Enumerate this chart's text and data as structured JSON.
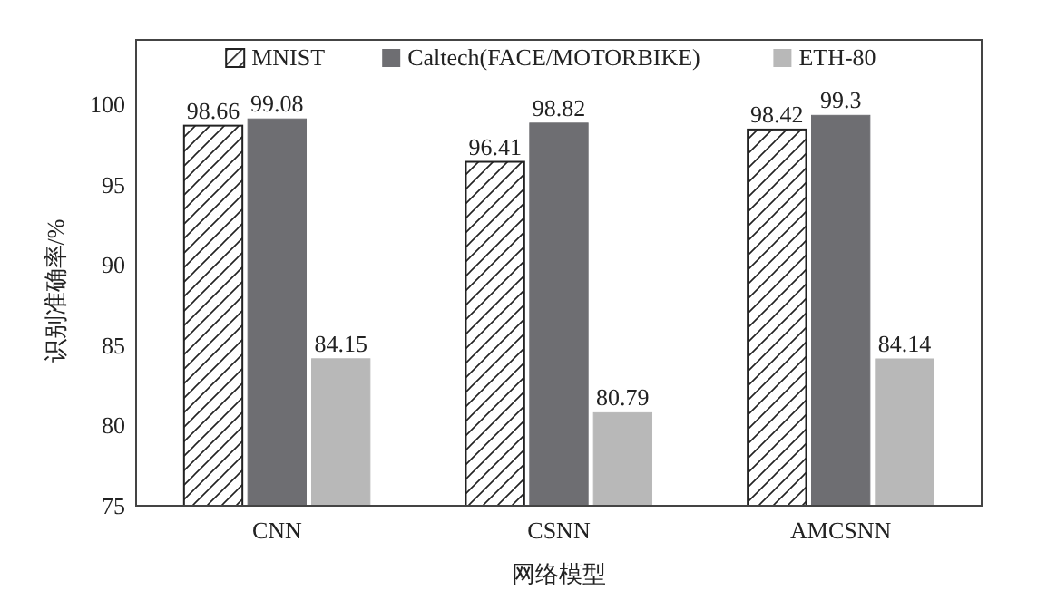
{
  "chart_data": {
    "type": "bar",
    "xlabel": "网络模型",
    "ylabel": "识别准确率/%",
    "categories": [
      "CNN",
      "CSNN",
      "AMCSNN"
    ],
    "series": [
      {
        "name": "MNIST",
        "color": "#222222",
        "values": [
          98.66,
          96.41,
          98.42
        ]
      },
      {
        "name": "Caltech(FACE/MOTORBIKE)",
        "color": "#6e6e72",
        "values": [
          99.08,
          98.82,
          99.3
        ]
      },
      {
        "name": "ETH-80",
        "color": "#b8b8b8",
        "values": [
          84.15,
          80.79,
          84.14
        ]
      }
    ],
    "ylim": [
      75,
      104
    ],
    "yticks": [
      75,
      80,
      85,
      90,
      95,
      100
    ],
    "data_labels": true,
    "legend": "top",
    "grid": false
  }
}
